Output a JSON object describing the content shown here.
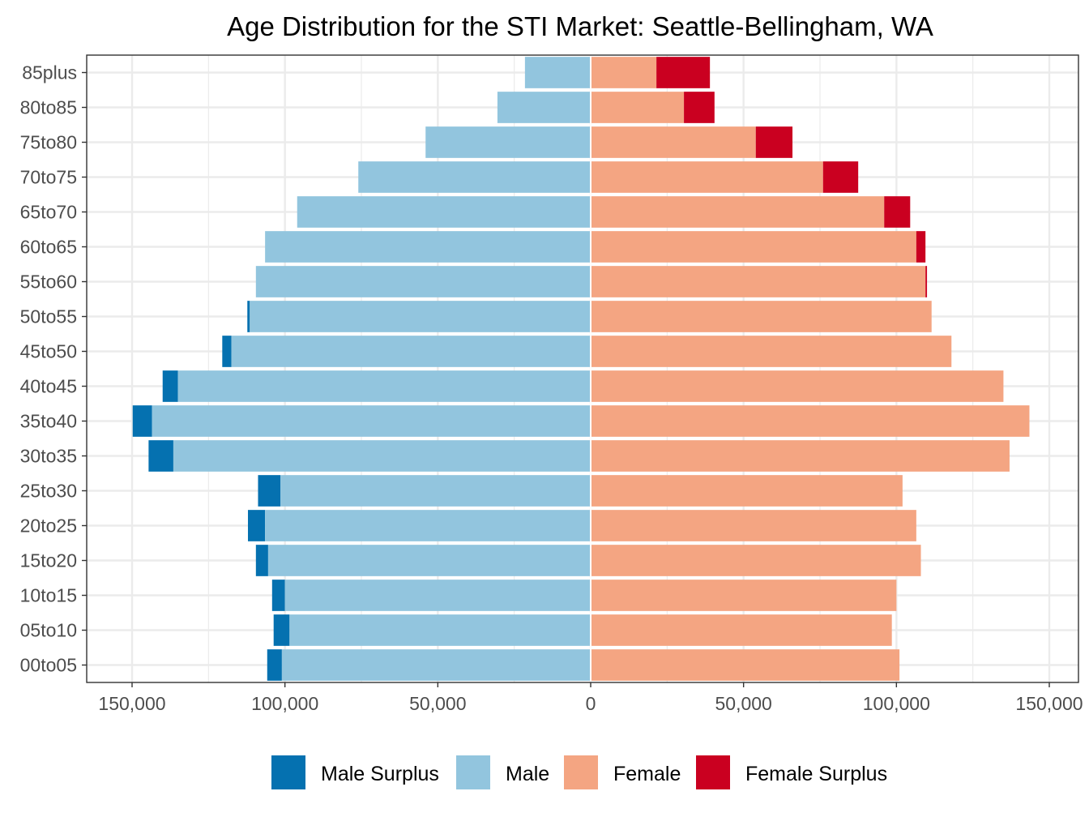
{
  "chart_data": {
    "type": "bar",
    "orientation": "horizontal",
    "layout": "population-pyramid",
    "title": "Age Distribution for the STI Market: Seattle-Bellingham, WA",
    "xlabel": "",
    "ylabel": "",
    "xlim": [
      -150000,
      150000
    ],
    "grid": true,
    "legend_position": "bottom",
    "categories": [
      "00to05",
      "05to10",
      "10to15",
      "15to20",
      "20to25",
      "25to30",
      "30to35",
      "35to40",
      "40to45",
      "45to50",
      "50to55",
      "55to60",
      "60to65",
      "65to70",
      "70to75",
      "75to80",
      "80to85",
      "85plus"
    ],
    "x_ticks": [
      {
        "value": -150000,
        "label": "150,000"
      },
      {
        "value": -100000,
        "label": "100,000"
      },
      {
        "value": -50000,
        "label": "50,000"
      },
      {
        "value": 0,
        "label": "0"
      },
      {
        "value": 50000,
        "label": "50,000"
      },
      {
        "value": 100000,
        "label": "100,000"
      },
      {
        "value": 150000,
        "label": "150,000"
      }
    ],
    "series": [
      {
        "name": "Male Surplus",
        "color": "#0571b0",
        "side": "left",
        "values": [
          4800,
          5200,
          4200,
          4000,
          5600,
          7300,
          8100,
          6300,
          5000,
          3000,
          800,
          0,
          0,
          0,
          0,
          0,
          0,
          0
        ]
      },
      {
        "name": "Male",
        "color": "#92c5de",
        "side": "left",
        "values": [
          101000,
          98500,
          100000,
          105500,
          106500,
          101500,
          136500,
          143500,
          135000,
          117500,
          111500,
          109500,
          106500,
          96000,
          76000,
          54000,
          30500,
          21500
        ]
      },
      {
        "name": "Female",
        "color": "#f4a582",
        "side": "right",
        "values": [
          101000,
          98500,
          100000,
          108000,
          106500,
          102000,
          137000,
          143500,
          135000,
          118000,
          111500,
          109500,
          106500,
          96000,
          76000,
          54000,
          30500,
          21500
        ]
      },
      {
        "name": "Female Surplus",
        "color": "#ca0020",
        "side": "right",
        "values": [
          0,
          0,
          0,
          0,
          0,
          0,
          0,
          0,
          0,
          0,
          0,
          500,
          3000,
          8500,
          11500,
          12000,
          10000,
          17500
        ]
      }
    ]
  }
}
